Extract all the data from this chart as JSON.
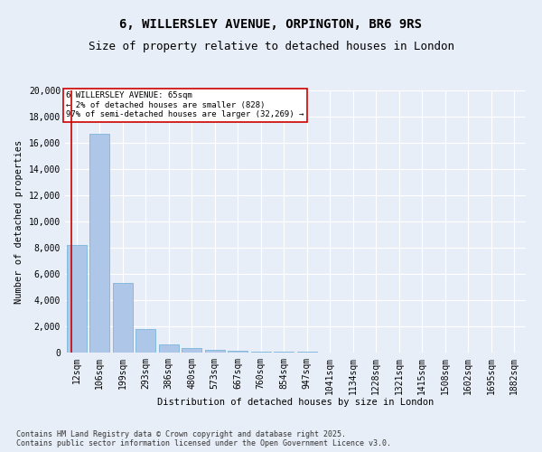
{
  "title": "6, WILLERSLEY AVENUE, ORPINGTON, BR6 9RS",
  "subtitle": "Size of property relative to detached houses in London",
  "xlabel": "Distribution of detached houses by size in London",
  "ylabel": "Number of detached properties",
  "bar_labels": [
    "12sqm",
    "106sqm",
    "199sqm",
    "293sqm",
    "386sqm",
    "480sqm",
    "573sqm",
    "667sqm",
    "760sqm",
    "854sqm",
    "947sqm",
    "1041sqm",
    "1134sqm",
    "1228sqm",
    "1321sqm",
    "1415sqm",
    "1508sqm",
    "1602sqm",
    "1695sqm",
    "1882sqm"
  ],
  "bar_values": [
    8200,
    16700,
    5300,
    1800,
    650,
    350,
    200,
    150,
    100,
    100,
    50,
    30,
    20,
    15,
    10,
    8,
    5,
    4,
    3,
    2
  ],
  "bar_color": "#aec6e8",
  "bar_edge_color": "#6baed6",
  "ylim": [
    0,
    20000
  ],
  "yticks": [
    0,
    2000,
    4000,
    6000,
    8000,
    10000,
    12000,
    14000,
    16000,
    18000,
    20000
  ],
  "vline_color": "#cc0000",
  "annotation_text": "6 WILLERSLEY AVENUE: 65sqm\n← 2% of detached houses are smaller (828)\n97% of semi-detached houses are larger (32,269) →",
  "annotation_box_color": "#cc0000",
  "annotation_bg": "white",
  "footnote": "Contains HM Land Registry data © Crown copyright and database right 2025.\nContains public sector information licensed under the Open Government Licence v3.0.",
  "bg_color": "#e8eef8",
  "grid_color": "#ffffff",
  "title_fontsize": 10,
  "subtitle_fontsize": 9,
  "tick_fontsize": 7,
  "ylabel_fontsize": 7.5,
  "xlabel_fontsize": 7.5,
  "annotation_fontsize": 6.5,
  "footnote_fontsize": 6
}
